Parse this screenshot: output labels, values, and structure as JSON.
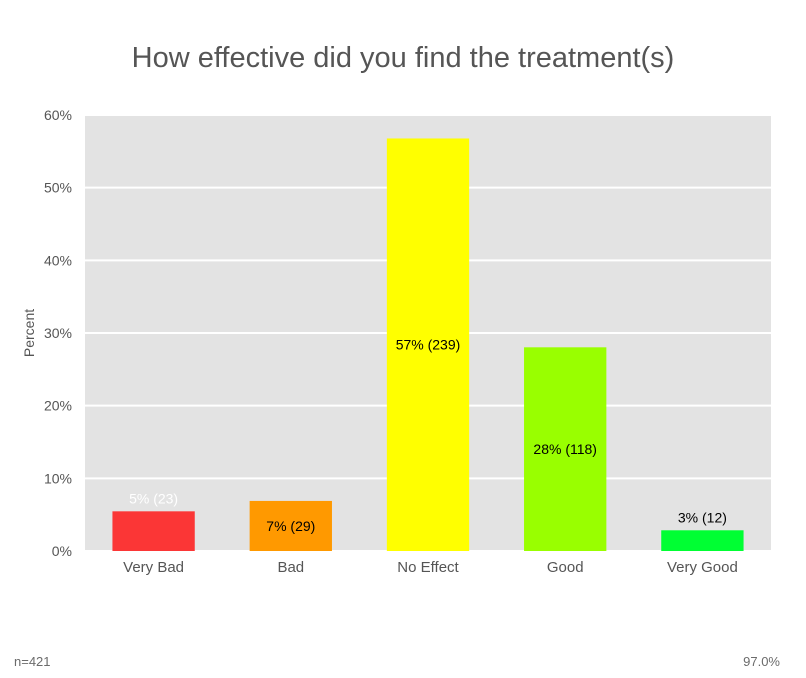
{
  "chart_data": {
    "type": "bar",
    "title": "How effective did you find the treatment(s)",
    "xlabel": "",
    "ylabel": "Percent",
    "ylim": [
      0,
      60
    ],
    "yticks": [
      0,
      10,
      20,
      30,
      40,
      50,
      60
    ],
    "ytick_labels": [
      "0%",
      "10%",
      "20%",
      "30%",
      "40%",
      "50%",
      "60%"
    ],
    "grid": true,
    "legend": "none",
    "categories": [
      "Very Bad",
      "Bad",
      "No Effect",
      "Good",
      "Very Good"
    ],
    "values": [
      5.46,
      6.89,
      56.77,
      28.03,
      2.85
    ],
    "data_labels": [
      "5% (23)",
      "7% (29)",
      "57% (239)",
      "28% (118)",
      "3% (12)"
    ],
    "colors": [
      "#fb3636",
      "#ff9900",
      "#ffff00",
      "#99ff00",
      "#00ff33"
    ],
    "label_colors": [
      "#ffffff",
      "#000000",
      "#000000",
      "#000000",
      "#000000"
    ],
    "plot_background": "#e3e3e3",
    "gridline_color": "#ffffff"
  },
  "footer": {
    "n_label": "n=421",
    "percent_label": "97.0%"
  }
}
